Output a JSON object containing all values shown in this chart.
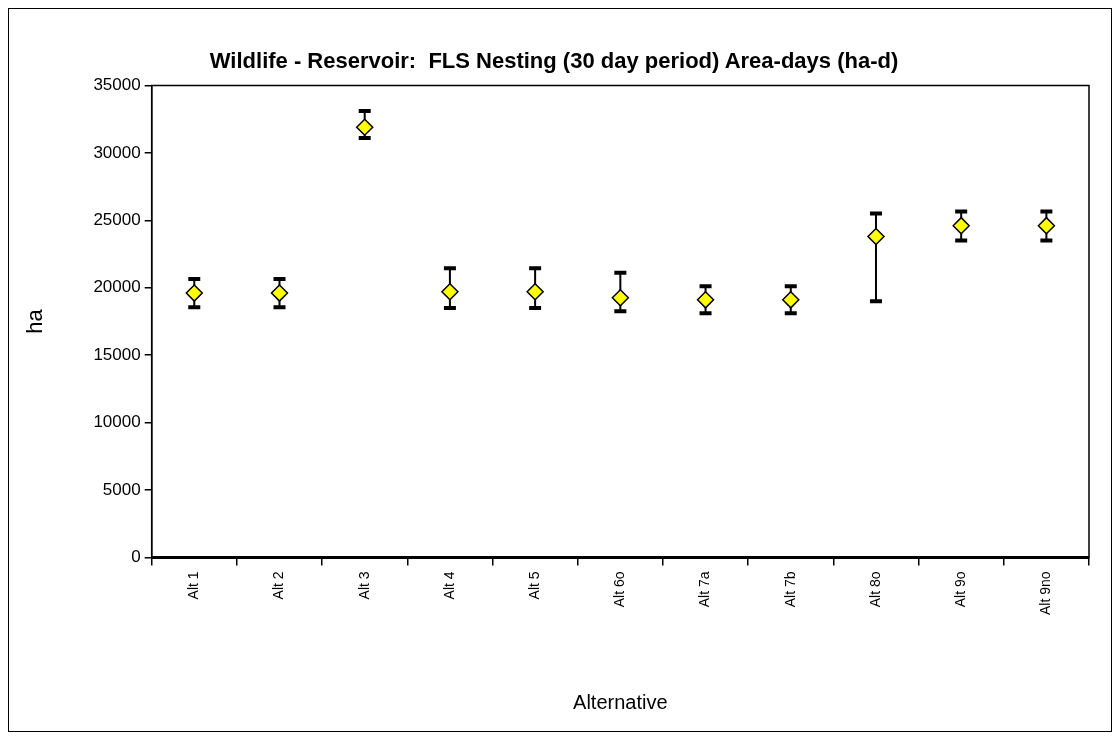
{
  "chart_data": {
    "type": "scatter",
    "title": "Wildlife - Reservoir:  FLS Nesting (30 day period) Area-days (ha-d)",
    "xlabel": "Alternative",
    "ylabel": "ha",
    "categories": [
      "Alt 1",
      "Alt 2",
      "Alt 3",
      "Alt 4",
      "Alt 5",
      "Alt 6o",
      "Alt 7a",
      "Alt 7b",
      "Alt 8o",
      "Alt 9o",
      "Alt 9no"
    ],
    "series": [
      {
        "color": "#ffff00",
        "values": [
          19600,
          19600,
          31900,
          19700,
          19700,
          19250,
          19100,
          19100,
          23800,
          24600,
          24600
        ],
        "errors": [
          [
            18550,
            20650
          ],
          [
            18550,
            20650
          ],
          [
            31100,
            33100
          ],
          [
            18500,
            21450
          ],
          [
            18500,
            21450
          ],
          [
            18250,
            21100
          ],
          [
            18100,
            20100
          ],
          [
            18100,
            20100
          ],
          [
            19000,
            25500
          ],
          [
            23500,
            25650
          ],
          [
            23500,
            25650
          ]
        ]
      }
    ],
    "ylim": [
      0,
      35000
    ],
    "yticks": [
      0,
      5000,
      10000,
      15000,
      20000,
      25000,
      30000,
      35000
    ],
    "grid": false,
    "legend": false,
    "marker": "diamond"
  }
}
